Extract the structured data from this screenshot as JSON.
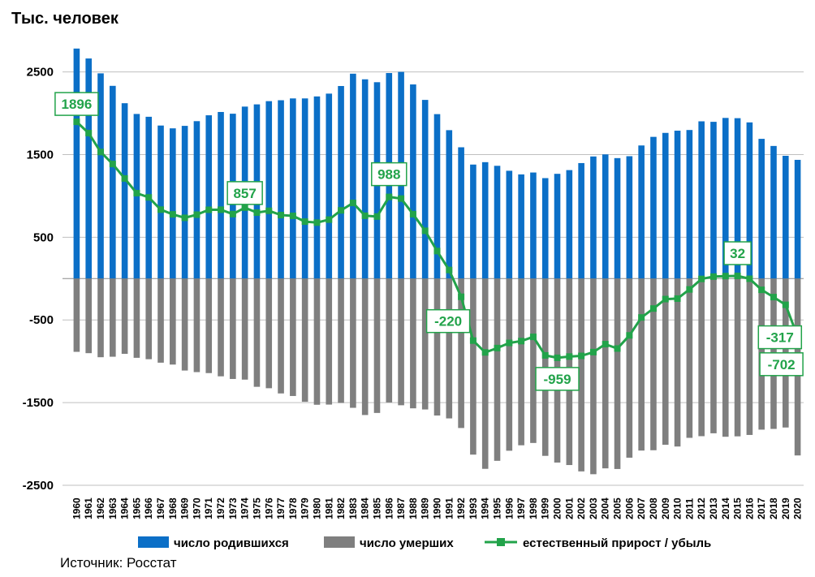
{
  "unit_title": "Тыс. человек",
  "source": "Источник: Росстат",
  "colors": {
    "births": "#0b6fc7",
    "deaths": "#7f7f7f",
    "natural": "#22a34a",
    "grid": "#bfbfbf"
  },
  "chart_data": {
    "type": "bar",
    "ylim": [
      -2500,
      2800
    ],
    "yticks": [
      "2500",
      "1500",
      "500",
      "-500",
      "-1500",
      "-2500"
    ],
    "grid": true,
    "legend_position": "bottom",
    "categories": [
      "1960",
      "1961",
      "1962",
      "1963",
      "1964",
      "1965",
      "1966",
      "1967",
      "1968",
      "1969",
      "1970",
      "1971",
      "1972",
      "1973",
      "1974",
      "1975",
      "1976",
      "1977",
      "1978",
      "1979",
      "1980",
      "1981",
      "1982",
      "1983",
      "1984",
      "1985",
      "1986",
      "1987",
      "1988",
      "1989",
      "1990",
      "1991",
      "1992",
      "1993",
      "1994",
      "1995",
      "1996",
      "1997",
      "1998",
      "1999",
      "2000",
      "2001",
      "2002",
      "2003",
      "2004",
      "2005",
      "2006",
      "2007",
      "2008",
      "2009",
      "2010",
      "2011",
      "2012",
      "2013",
      "2014",
      "2015",
      "2016",
      "2017",
      "2018",
      "2019",
      "2020"
    ],
    "series": [
      {
        "name": "число родившихся",
        "kind": "bar",
        "values": [
          2782,
          2662,
          2482,
          2331,
          2121,
          1991,
          1957,
          1851,
          1817,
          1847,
          1904,
          1975,
          2015,
          1994,
          2080,
          2107,
          2146,
          2157,
          2179,
          2179,
          2203,
          2237,
          2329,
          2478,
          2410,
          2375,
          2486,
          2500,
          2348,
          2161,
          1989,
          1795,
          1588,
          1379,
          1408,
          1364,
          1304,
          1260,
          1283,
          1215,
          1267,
          1312,
          1397,
          1477,
          1502,
          1457,
          1480,
          1610,
          1714,
          1762,
          1789,
          1797,
          1902,
          1896,
          1943,
          1940,
          1889,
          1690,
          1604,
          1485,
          1436
        ]
      },
      {
        "name": "число умерших",
        "kind": "bar",
        "values": [
          -886,
          -902,
          -951,
          -945,
          -910,
          -958,
          -975,
          -1017,
          -1040,
          -1112,
          -1131,
          -1143,
          -1182,
          -1214,
          -1222,
          -1309,
          -1326,
          -1389,
          -1420,
          -1490,
          -1526,
          -1524,
          -1504,
          -1563,
          -1650,
          -1625,
          -1498,
          -1532,
          -1569,
          -1583,
          -1656,
          -1691,
          -1807,
          -2129,
          -2301,
          -2204,
          -2082,
          -2016,
          -1988,
          -2144,
          -2225,
          -2255,
          -2332,
          -2366,
          -2295,
          -2303,
          -2166,
          -2080,
          -2076,
          -2010,
          -2031,
          -1926,
          -1906,
          -1871,
          -1913,
          -1908,
          -1891,
          -1827,
          -1818,
          -1801,
          -2139
        ]
      },
      {
        "name": "естественный прирост / убыль",
        "kind": "line",
        "values": [
          1896,
          1760,
          1531,
          1386,
          1211,
          1033,
          982,
          834,
          777,
          735,
          773,
          832,
          833,
          780,
          858,
          798,
          820,
          768,
          759,
          689,
          677,
          713,
          825,
          915,
          760,
          750,
          988,
          968,
          779,
          578,
          333,
          104,
          -220,
          -750,
          -893,
          -840,
          -778,
          -756,
          -705,
          -929,
          -958,
          -943,
          -935,
          -889,
          -793,
          -846,
          -687,
          -470,
          -362,
          -248,
          -242,
          -131,
          -4,
          24,
          30,
          32,
          -2,
          -136,
          -224,
          -317,
          -702
        ]
      }
    ],
    "callouts": [
      {
        "index": 0,
        "label": "1896"
      },
      {
        "index": 14,
        "label": "857"
      },
      {
        "index": 26,
        "label": "988"
      },
      {
        "index": 32,
        "label": "-220"
      },
      {
        "index": 40,
        "label": "-959"
      },
      {
        "index": 55,
        "label": "32"
      },
      {
        "index": 59,
        "label": "-317"
      },
      {
        "index": 60,
        "label": "-702"
      }
    ]
  }
}
